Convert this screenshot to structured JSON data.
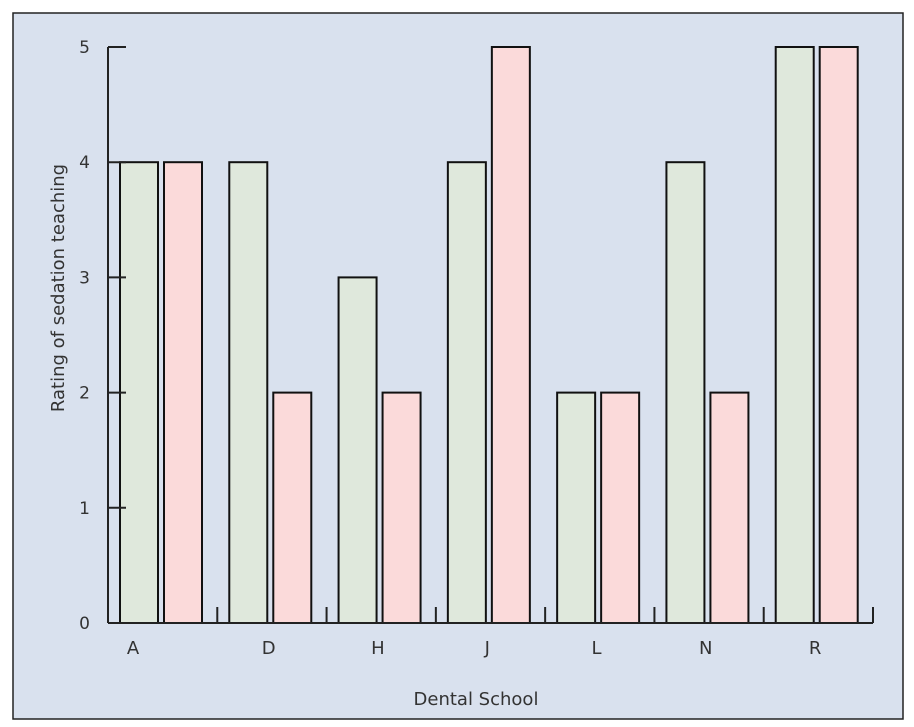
{
  "chart_data": {
    "type": "bar",
    "title": "",
    "xlabel": "Dental School",
    "ylabel": "Rating of sedation teaching",
    "categories": [
      "A",
      "D",
      "H",
      "J",
      "L",
      "N",
      "R"
    ],
    "series": [
      {
        "values": [
          4,
          4,
          3,
          4,
          2,
          4,
          5
        ]
      },
      {
        "values": [
          4,
          2,
          2,
          5,
          2,
          2,
          5
        ]
      }
    ],
    "ylim": [
      0,
      5
    ],
    "yticks": [
      "0",
      "1",
      "2",
      "3",
      "4",
      "5"
    ],
    "grid": false,
    "legend": "none"
  },
  "colors": {
    "background": "#d9e1ee",
    "frame": "#222222",
    "series": [
      "#dfe8dc",
      "#fbdada"
    ],
    "bar_edge": "#111111"
  }
}
